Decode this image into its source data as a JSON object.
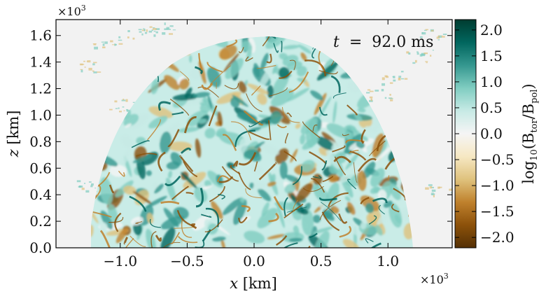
{
  "chart_data": {
    "type": "heatmap",
    "title": "",
    "annotation": {
      "symbol": "t",
      "equals": "=",
      "value": "92.0 ms"
    },
    "xlabel": {
      "var": "x",
      "unit": "[km]"
    },
    "ylabel": {
      "var": "z",
      "unit": "[km]"
    },
    "x_multiplier": {
      "base": "×10",
      "exp": "3"
    },
    "y_multiplier": {
      "base": "×10",
      "exp": "3"
    },
    "xlim": [
      -1.48,
      1.48
    ],
    "ylim": [
      0.0,
      1.72
    ],
    "x_ticks": [
      -1.0,
      -0.5,
      0.0,
      0.5,
      1.0
    ],
    "x_tick_labels": [
      "−1.0",
      "−0.5",
      "0.0",
      "0.5",
      "1.0"
    ],
    "y_ticks": [
      0.0,
      0.2,
      0.4,
      0.6,
      0.8,
      1.0,
      1.2,
      1.4,
      1.6
    ],
    "y_tick_labels": [
      "0.0",
      "0.2",
      "0.4",
      "0.6",
      "0.8",
      "1.0",
      "1.2",
      "1.4",
      "1.6"
    ],
    "colorbar": {
      "label": {
        "prefix": "log",
        "sub10": "10",
        "open": "(B",
        "tor": "tor",
        "slash": "/B",
        "pol": "pol",
        "close": ")"
      },
      "range": [
        -2.2,
        2.2
      ],
      "ticks": [
        -2.0,
        -1.5,
        -1.0,
        -0.5,
        0.0,
        0.5,
        1.0,
        1.5,
        2.0
      ],
      "tick_labels": [
        "−2.0",
        "−1.5",
        "−1.0",
        "−0.5",
        "0.0",
        "0.5",
        "1.0",
        "1.5",
        "2.0"
      ],
      "colormap": "BrBG",
      "colors": [
        "#543005",
        "#8c510a",
        "#bf812d",
        "#dfc27d",
        "#f6e8c3",
        "#f5f5f5",
        "#c7eae5",
        "#80cdc1",
        "#35978f",
        "#01665e",
        "#003c30"
      ]
    },
    "background_color": "#f2f2f2",
    "grid": false
  }
}
